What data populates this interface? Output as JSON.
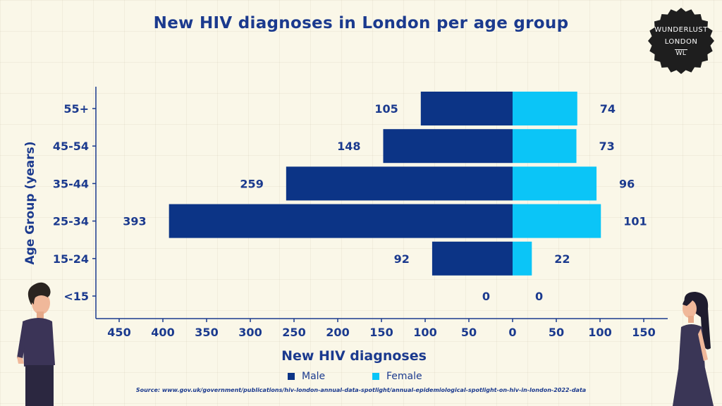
{
  "title": "New HIV diagnoses in London per age group",
  "logo": {
    "line1": "WUNDERLUST",
    "line2": "LONDON",
    "mark": "WL"
  },
  "source": "Source: www.gov.uk/government/publications/hiv-london-annual-data-spotlight/annual-epidemiological-spotlight-on-hiv-in-london-2022-data",
  "chart_data": {
    "type": "bar",
    "orientation": "horizontal-diverging",
    "categories": [
      "55+",
      "45-54",
      "35-44",
      "25-34",
      "15-24",
      "<15"
    ],
    "series": [
      {
        "name": "Male",
        "values": [
          105,
          148,
          259,
          393,
          92,
          0
        ],
        "color": "#0c3486"
      },
      {
        "name": "Female",
        "values": [
          74,
          73,
          96,
          101,
          22,
          0
        ],
        "color": "#0bc5f7"
      }
    ],
    "xlabel": "New HIV diagnoses",
    "ylabel": "Age Group (years)",
    "xticks": [
      "450",
      "400",
      "350",
      "300",
      "250",
      "200",
      "150",
      "100",
      "50",
      "0",
      "50",
      "100",
      "150"
    ],
    "xlim": [
      -470,
      180
    ],
    "legend_position": "bottom"
  }
}
